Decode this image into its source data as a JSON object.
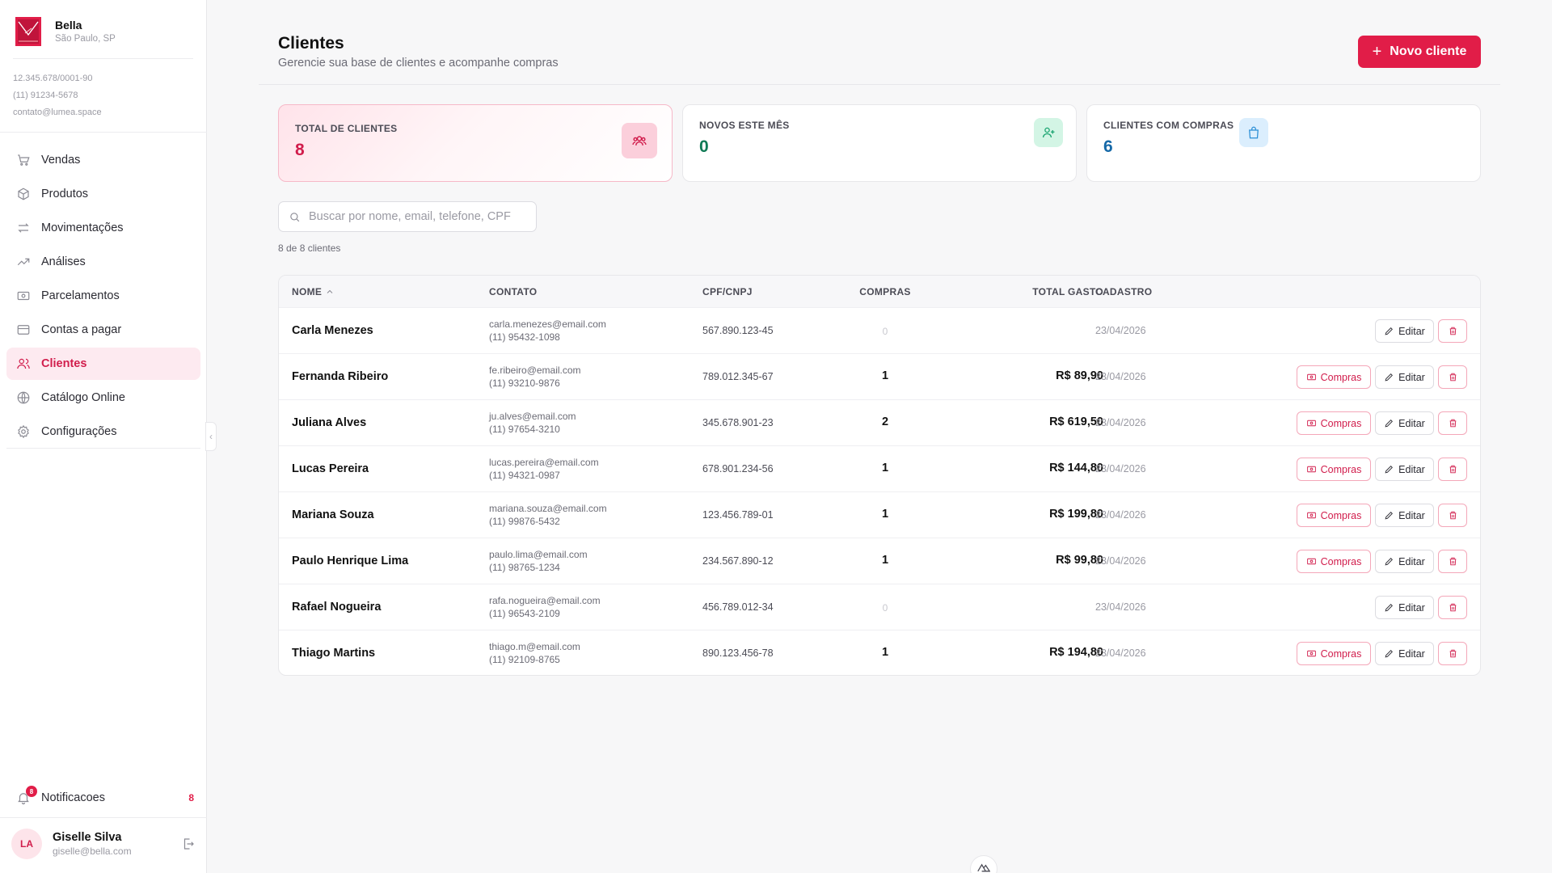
{
  "brand": {
    "name": "Bella",
    "city": "São Paulo, SP",
    "cnpj": "12.345.678/0001-90",
    "phone": "(11) 91234-5678",
    "email": "contato@lumea.space"
  },
  "nav": {
    "items": [
      {
        "label": "Vendas",
        "icon": "cart-icon"
      },
      {
        "label": "Produtos",
        "icon": "box-icon"
      },
      {
        "label": "Movimentações",
        "icon": "arrows-icon"
      },
      {
        "label": "Análises",
        "icon": "trend-icon"
      },
      {
        "label": "Parcelamentos",
        "icon": "banknote-icon"
      },
      {
        "label": "Contas a pagar",
        "icon": "credit-card-icon"
      },
      {
        "label": "Clientes",
        "icon": "users-icon",
        "active": true
      },
      {
        "label": "Catálogo Online",
        "icon": "globe-icon"
      },
      {
        "label": "Configurações",
        "icon": "gear-icon"
      }
    ],
    "notifications_label": "Notificacoes",
    "notifications_badge": "8",
    "notifications_count": "8"
  },
  "user": {
    "initials": "LA",
    "name": "Giselle Silva",
    "email": "giselle@bella.com"
  },
  "header": {
    "title": "Clientes",
    "subtitle": "Gerencie sua base de clientes e acompanhe compras",
    "new_button": "Novo cliente"
  },
  "stats": {
    "total_label": "TOTAL DE CLIENTES",
    "total_value": "8",
    "new_label": "NOVOS ESTE MÊS",
    "new_value": "0",
    "buyers_label": "CLIENTES COM COMPRAS",
    "buyers_value": "6"
  },
  "search": {
    "placeholder": "Buscar por nome, email, telefone, CPF",
    "value": ""
  },
  "count_text": "8 de 8 clientes",
  "table": {
    "headers": {
      "name": "NOME",
      "contact": "CONTATO",
      "doc": "CPF/CNPJ",
      "purchases": "COMPRAS",
      "total": "TOTAL GASTO",
      "created": "CADASTRO"
    },
    "rows": [
      {
        "name": "Carla Menezes",
        "email": "carla.menezes@email.com",
        "phone": "(11) 95432-1098",
        "doc": "567.890.123-45",
        "purchases": "0",
        "total": "-",
        "date": "23/04/2026"
      },
      {
        "name": "Fernanda Ribeiro",
        "email": "fe.ribeiro@email.com",
        "phone": "(11) 93210-9876",
        "doc": "789.012.345-67",
        "purchases": "1",
        "total": "R$ 89,90",
        "date": "23/04/2026"
      },
      {
        "name": "Juliana Alves",
        "email": "ju.alves@email.com",
        "phone": "(11) 97654-3210",
        "doc": "345.678.901-23",
        "purchases": "2",
        "total": "R$ 619,50",
        "date": "23/04/2026"
      },
      {
        "name": "Lucas Pereira",
        "email": "lucas.pereira@email.com",
        "phone": "(11) 94321-0987",
        "doc": "678.901.234-56",
        "purchases": "1",
        "total": "R$ 144,80",
        "date": "23/04/2026"
      },
      {
        "name": "Mariana Souza",
        "email": "mariana.souza@email.com",
        "phone": "(11) 99876-5432",
        "doc": "123.456.789-01",
        "purchases": "1",
        "total": "R$ 199,80",
        "date": "23/04/2026"
      },
      {
        "name": "Paulo Henrique Lima",
        "email": "paulo.lima@email.com",
        "phone": "(11) 98765-1234",
        "doc": "234.567.890-12",
        "purchases": "1",
        "total": "R$ 99,80",
        "date": "23/04/2026"
      },
      {
        "name": "Rafael Nogueira",
        "email": "rafa.nogueira@email.com",
        "phone": "(11) 96543-2109",
        "doc": "456.789.012-34",
        "purchases": "0",
        "total": "-",
        "date": "23/04/2026"
      },
      {
        "name": "Thiago Martins",
        "email": "thiago.m@email.com",
        "phone": "(11) 92109-8765",
        "doc": "890.123.456-78",
        "purchases": "1",
        "total": "R$ 194,80",
        "date": "23/04/2026"
      }
    ],
    "compras_label": "Compras",
    "editar_label": "Editar"
  },
  "colors": {
    "accent": "#e11d48",
    "accent_text": "#d11d4c",
    "stat_green": "#0f7a55",
    "stat_blue": "#1669a8"
  }
}
